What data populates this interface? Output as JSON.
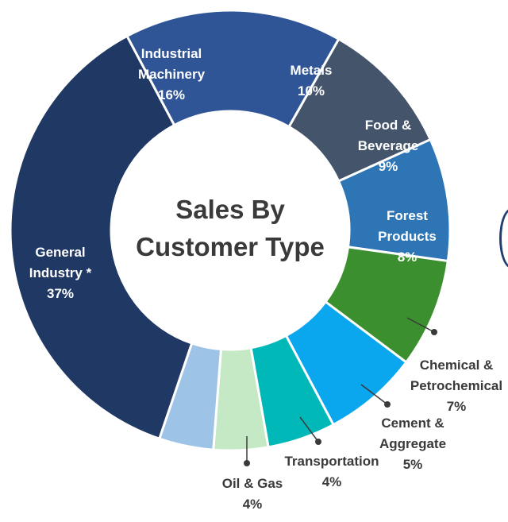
{
  "chart_data": {
    "type": "pie",
    "title": "Sales By Customer Type",
    "title_lines": [
      "Sales By",
      "Customer Type"
    ],
    "unit": "%",
    "slices": [
      {
        "name": "Industrial Machinery",
        "lines": [
          "Industrial",
          "Machinery"
        ],
        "value": 16,
        "pct_label": "16%",
        "color": "#2f5597",
        "text_color": "#ffffff"
      },
      {
        "name": "Metals",
        "lines": [
          "Metals"
        ],
        "value": 10,
        "pct_label": "10%",
        "color": "#44546a",
        "text_color": "#ffffff"
      },
      {
        "name": "Food & Beverage",
        "lines": [
          "Food &",
          "Beverage"
        ],
        "value": 9,
        "pct_label": "9%",
        "color": "#2e75b6",
        "text_color": "#ffffff"
      },
      {
        "name": "Forest Products",
        "lines": [
          "Forest",
          "Products"
        ],
        "value": 8,
        "pct_label": "8%",
        "color": "#3b8f2e",
        "text_color": "#ffffff"
      },
      {
        "name": "Chemical & Petrochemical",
        "lines": [
          "Chemical &",
          "Petrochemical"
        ],
        "value": 7,
        "pct_label": "7%",
        "color": "#0aa6ee",
        "text_color": "#3a3a3a"
      },
      {
        "name": "Cement & Aggregate",
        "lines": [
          "Cement &",
          "Aggregate"
        ],
        "value": 5,
        "pct_label": "5%",
        "color": "#00b8b8",
        "text_color": "#3a3a3a"
      },
      {
        "name": "Transportation",
        "lines": [
          "Transportation"
        ],
        "value": 4,
        "pct_label": "4%",
        "color": "#c5e8c5",
        "text_color": "#3a3a3a"
      },
      {
        "name": "Oil & Gas",
        "lines": [
          "Oil & Gas"
        ],
        "value": 4,
        "pct_label": "4%",
        "color": "#9dc3e6",
        "text_color": "#3a3a3a"
      },
      {
        "name": "General Industry *",
        "lines": [
          "General",
          "Industry *"
        ],
        "value": 37,
        "pct_label": "37%",
        "color": "#203864",
        "text_color": "#ffffff"
      }
    ]
  }
}
